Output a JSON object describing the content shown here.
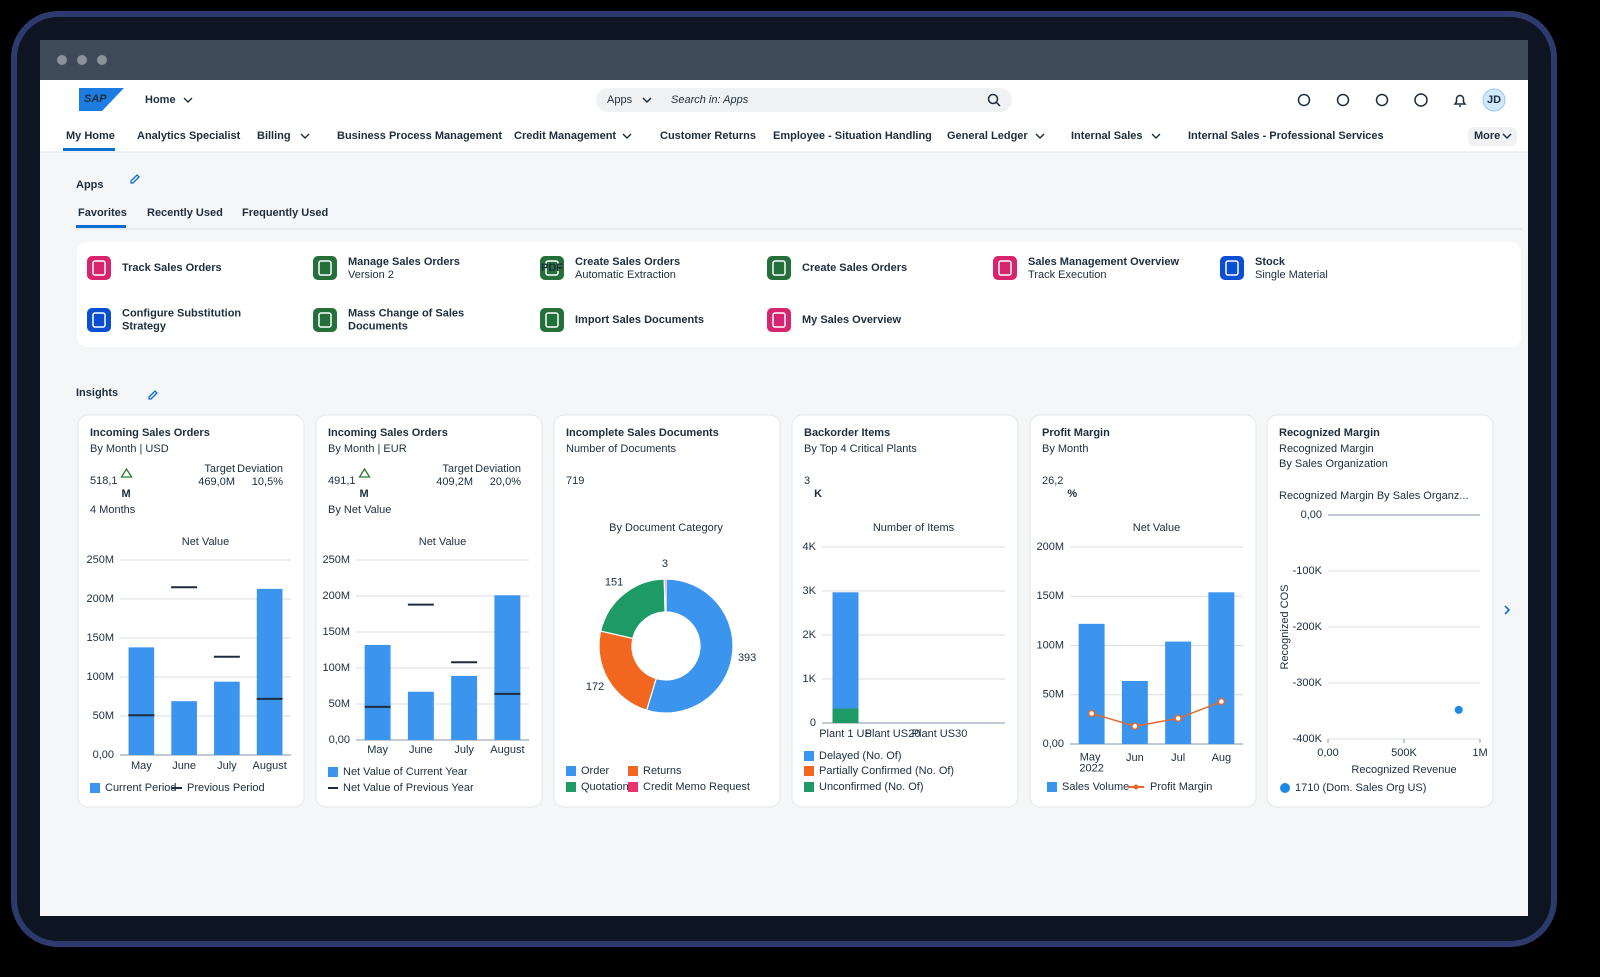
{
  "header": {
    "logo": "SAP",
    "home": "Home",
    "search_scope": "Apps",
    "search_placeholder": "Search in: Apps",
    "avatar": "JD"
  },
  "nav": {
    "tabs": [
      "My Home",
      "Analytics Specialist",
      "Billing",
      "Business Process Management",
      "Credit Management",
      "Customer Returns",
      "Employee - Situation Handling",
      "General Ledger",
      "Internal Sales",
      "Internal Sales - Professional Services"
    ],
    "more": "More"
  },
  "apps": {
    "title": "Apps",
    "tabs": [
      "Favorites",
      "Recently Used",
      "Frequently Used"
    ],
    "items": [
      {
        "title": "Track Sales Orders"
      },
      {
        "title": "Manage Sales Orders",
        "subtitle": "Version 2"
      },
      {
        "title": "Create Sales Orders",
        "subtitle": "Automatic Extraction",
        "icon_label": "PDF"
      },
      {
        "title": "Create Sales Orders"
      },
      {
        "title": "Sales Management Overview",
        "subtitle": "Track Execution"
      },
      {
        "title": "Stock",
        "subtitle": "Single Material"
      },
      {
        "title": "Configure Substitution Strategy"
      },
      {
        "title": "Mass Change of Sales Documents"
      },
      {
        "title": "Import Sales Documents"
      },
      {
        "title": "My Sales Overview"
      }
    ]
  },
  "insights": {
    "title": "Insights",
    "cards": [
      {
        "title": "Incoming Sales Orders",
        "subtitle": "By Month | USD",
        "kpi": "518,1",
        "kpi_unit": "M",
        "target_label": "Target",
        "target": "469,0M",
        "deviation_label": "Deviation",
        "deviation": "10,5%",
        "note": "4 Months",
        "chart": {
          "type": "bar",
          "title": "Net Value",
          "categories": [
            "May",
            "June",
            "July",
            "August"
          ],
          "series": [
            {
              "name": "Current Period",
              "color": "#3b94ee",
              "values": [
                138,
                69,
                94,
                213
              ]
            },
            {
              "name": "Previous Period",
              "type": "marker",
              "color": "#1d2d3e",
              "values": [
                51,
                215,
                126,
                72
              ]
            }
          ],
          "ylim": [
            0,
            250
          ],
          "yticks": [
            {
              "value": 0,
              "label": "0,00"
            },
            {
              "value": 50,
              "label": "50M"
            },
            {
              "value": 100,
              "label": "100M"
            },
            {
              "value": 150,
              "label": "150M"
            },
            {
              "value": 200,
              "label": "200M"
            },
            {
              "value": 250,
              "label": "250M"
            }
          ]
        }
      },
      {
        "title": "Incoming Sales Orders",
        "subtitle": "By Month | EUR",
        "kpi": "491,1",
        "kpi_unit": "M",
        "target_label": "Target",
        "target": "409,2M",
        "deviation_label": "Deviation",
        "deviation": "20,0%",
        "note": "By Net Value",
        "chart": {
          "type": "bar",
          "title": "Net Value",
          "categories": [
            "May",
            "June",
            "July",
            "August"
          ],
          "series": [
            {
              "name": "Net Value of Current Year",
              "color": "#3b94ee",
              "values": [
                132,
                67,
                89,
                201
              ]
            },
            {
              "name": "Net Value of Previous Year",
              "type": "marker",
              "color": "#1d2d3e",
              "values": [
                46,
                188,
                108,
                64
              ]
            }
          ],
          "ylim": [
            0,
            250
          ],
          "yticks": [
            {
              "value": 0,
              "label": "0,00"
            },
            {
              "value": 50,
              "label": "50M"
            },
            {
              "value": 100,
              "label": "100M"
            },
            {
              "value": 150,
              "label": "150M"
            },
            {
              "value": 200,
              "label": "200M"
            },
            {
              "value": 250,
              "label": "250M"
            }
          ]
        }
      },
      {
        "title": "Incomplete Sales Documents",
        "subtitle": "Number of Documents",
        "kpi": "719",
        "chart": {
          "type": "donut",
          "title": "By Document Category",
          "categories": [
            "Order",
            "Returns",
            "Quotation",
            "Credit Memo Request"
          ],
          "values": [
            393,
            172,
            151,
            3
          ],
          "colors": [
            "#3b94ee",
            "#f2671f",
            "#1e9a66",
            "#e8336d"
          ]
        }
      },
      {
        "title": "Backorder Items",
        "subtitle": "By Top 4 Critical Plants",
        "kpi": "3",
        "kpi_unit": "K",
        "chart": {
          "type": "bar",
          "stacked": true,
          "title": "Number of Items",
          "categories": [
            "Plant 1 US",
            "Plant US20",
            "Plant US30"
          ],
          "series": [
            {
              "name": "Delayed (No. Of)",
              "color": "#3b94ee",
              "values": [
                2640,
                0,
                0
              ]
            },
            {
              "name": "Partially Confirmed (No. Of)",
              "color": "#f2671f",
              "values": [
                0,
                0,
                0
              ]
            },
            {
              "name": "Unconfirmed (No. Of)",
              "color": "#1e9a66",
              "values": [
                330,
                0,
                0
              ]
            }
          ],
          "ylim": [
            0,
            4000
          ],
          "yticks": [
            0,
            {
              "value": 1000,
              "label": "1K"
            },
            {
              "value": 2000,
              "label": "2K"
            },
            {
              "value": 3000,
              "label": "3K"
            },
            {
              "value": 4000,
              "label": "4K"
            }
          ]
        }
      },
      {
        "title": "Profit Margin",
        "subtitle": "By Month",
        "kpi": "26,2",
        "kpi_unit": "%",
        "chart": {
          "type": "bar",
          "title": "Net Value",
          "categories": [
            "May 2022",
            "Jun",
            "Jul",
            "Aug"
          ],
          "series": [
            {
              "name": "Sales Volume",
              "color": "#3b94ee",
              "values": [
                122,
                64,
                104,
                154
              ]
            },
            {
              "name": "Profit Margin",
              "type": "line",
              "color": "#e8692a",
              "values": [
                31,
                18,
                26,
                43
              ]
            }
          ],
          "ylim": [
            0,
            200
          ],
          "yticks": [
            {
              "value": 0,
              "label": "0,00"
            },
            {
              "value": 50,
              "label": "50M"
            },
            {
              "value": 100,
              "label": "100M"
            },
            {
              "value": 150,
              "label": "150M"
            },
            {
              "value": 200,
              "label": "200M"
            }
          ]
        }
      },
      {
        "title": "Recognized Margin",
        "subtitle": "Recognized Margin",
        "subtitle2": "By Sales Organization",
        "chart": {
          "type": "scatter",
          "title": "Recognized Margin By Sales Organz...",
          "xlabel": "Recognized Revenue",
          "ylabel": "Recognized COS",
          "series": [
            {
              "name": "1710 (Dom. Sales Org US)",
              "color": "#1e88e5",
              "x": [
                860000
              ],
              "values": [
                -348000
              ]
            }
          ],
          "xlim": [
            0,
            1000000
          ],
          "xticks": [
            {
              "value": 0,
              "label": "0,00"
            },
            {
              "value": 500000,
              "label": "500K"
            },
            {
              "value": 1000000,
              "label": "1M"
            }
          ],
          "ylim": [
            -400000,
            0
          ],
          "yticks": [
            {
              "value": 0,
              "label": "0,00"
            },
            {
              "value": -100000,
              "label": "-100K"
            },
            {
              "value": -200000,
              "label": "-200K"
            },
            {
              "value": -300000,
              "label": "-300K"
            },
            {
              "value": -400000,
              "label": "-400K"
            }
          ]
        }
      }
    ]
  }
}
